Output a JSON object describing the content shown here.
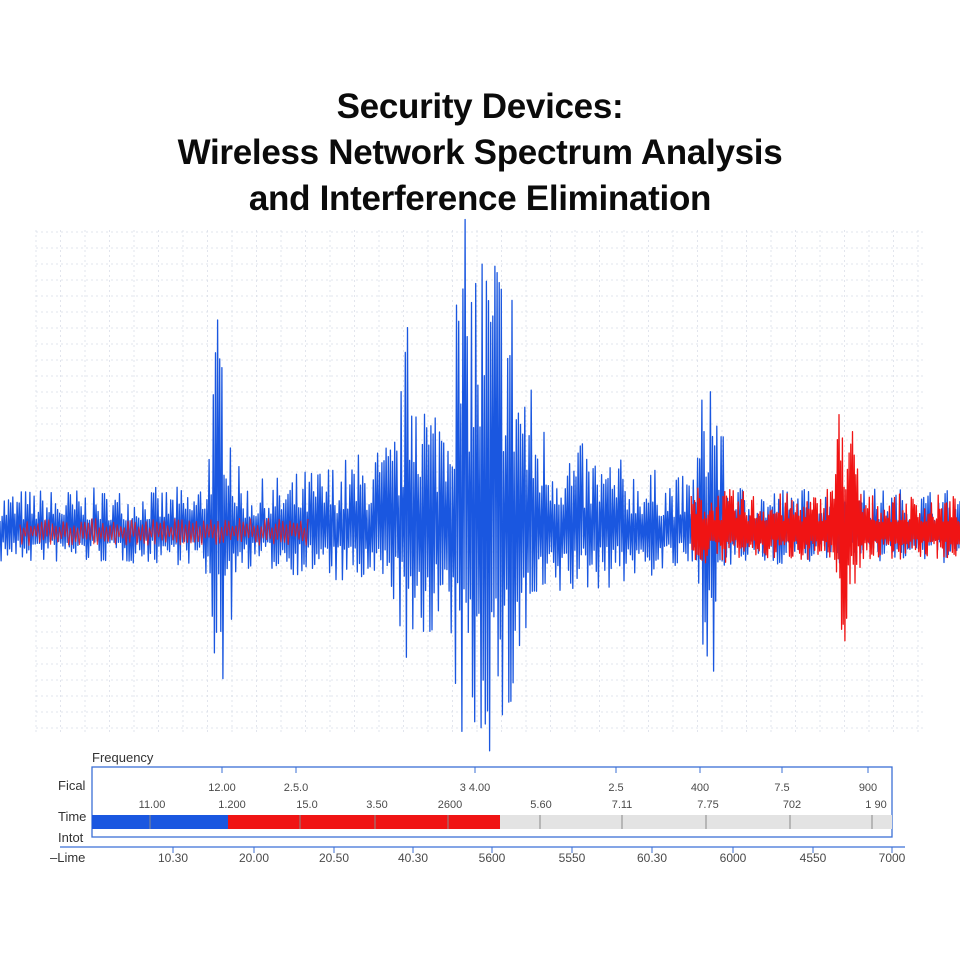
{
  "title": {
    "line1": "Security Devices:",
    "line2": "Wireless Network Spectrum Analysis",
    "line3": "and Interference Elimination"
  },
  "colors": {
    "signal": "#1a57e0",
    "interference": "#f01414",
    "grid": "#d6dbe6",
    "bar_empty": "#e3e3e3",
    "axis": "#3b6fd6"
  },
  "chart_data": {
    "type": "line",
    "title": "Security Devices: Wireless Network Spectrum Analysis and Interference Elimination",
    "grid": true,
    "series": [
      {
        "role": "signal",
        "color": "#1a57e0",
        "x_range": [
          0,
          1
        ],
        "envelope_peaks": [
          {
            "x": 0.23,
            "amplitude": 0.6
          },
          {
            "x": 0.505,
            "amplitude": 1.0
          },
          {
            "x": 0.43,
            "amplitude": 0.45
          },
          {
            "x": 0.74,
            "amplitude": 0.5
          }
        ],
        "baseline_amplitude": 0.14
      },
      {
        "role": "interference",
        "color": "#f01414",
        "x_range": [
          0.72,
          1.0
        ],
        "envelope_peaks": [
          {
            "x": 0.88,
            "amplitude": 0.38
          }
        ],
        "baseline_amplitude": 0.12
      }
    ],
    "timeline": {
      "header_label": "Frequency",
      "row_labels": [
        "Fical",
        "Time",
        "Intot",
        "–Lime"
      ],
      "top_ticks": [
        "12.00",
        "2.5.0",
        "3 4.00",
        "2.5",
        "400",
        "7.5",
        "900"
      ],
      "mid_ticks": [
        "11.00",
        "1.200",
        "15.0",
        "3.50",
        "2600",
        "5.60",
        "7.11",
        "7.75",
        "702",
        "1 90"
      ],
      "bottom_ticks": [
        "10.30",
        "20.00",
        "20.50",
        "40.30",
        "5600",
        "5550",
        "60.30",
        "6000",
        "4550",
        "7000"
      ],
      "progress": {
        "blue_fraction": 0.17,
        "red_fraction": 0.34,
        "empty_fraction": 0.49
      }
    }
  }
}
